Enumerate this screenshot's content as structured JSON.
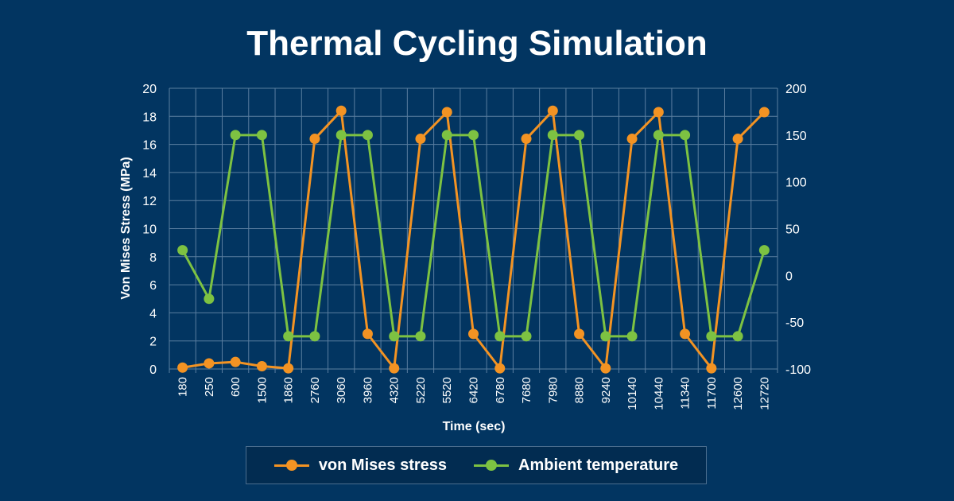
{
  "chart_data": {
    "type": "line",
    "title": "Thermal Cycling Simulation",
    "xlabel": "Time  (sec)",
    "ylabel": "Von Mises Stress (MPa)",
    "ylim": [
      0,
      20
    ],
    "ylim_right": [
      -100,
      200
    ],
    "yticks": [
      0,
      2,
      4,
      6,
      8,
      10,
      12,
      14,
      16,
      18,
      20
    ],
    "yticks_right": [
      -100,
      -50,
      0,
      50,
      100,
      150,
      200
    ],
    "grid": true,
    "legend_position": "bottom",
    "categories": [
      "180",
      "250",
      "600",
      "1500",
      "1860",
      "2760",
      "3060",
      "3960",
      "4320",
      "5220",
      "5520",
      "6420",
      "6780",
      "7680",
      "7980",
      "8880",
      "9240",
      "10140",
      "10440",
      "11340",
      "11700",
      "12600",
      "12720"
    ],
    "series": [
      {
        "name": "von Mises stress",
        "axis": "left",
        "color": "#f39323",
        "values": [
          0.1,
          0.4,
          0.5,
          0.2,
          0.05,
          16.4,
          18.4,
          2.5,
          0.05,
          16.4,
          18.3,
          2.5,
          0.05,
          16.4,
          18.4,
          2.5,
          0.05,
          16.4,
          18.3,
          2.5,
          0.05,
          16.4,
          18.3
        ]
      },
      {
        "name": "Ambient temperature",
        "axis": "right",
        "color": "#7dc242",
        "values": [
          27,
          -25,
          150,
          150,
          -65,
          -65,
          150,
          150,
          -65,
          -65,
          150,
          150,
          -65,
          -65,
          150,
          150,
          -65,
          -65,
          150,
          150,
          -65,
          -65,
          27
        ]
      }
    ]
  }
}
